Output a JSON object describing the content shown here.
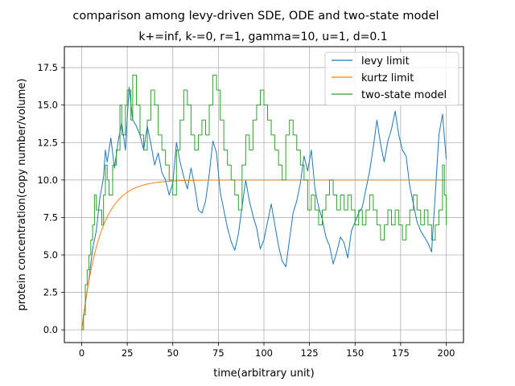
{
  "chart_data": {
    "type": "line",
    "suptitle": "comparison among levy-driven SDE, ODE and two-state model",
    "title": "k+=inf, k-=0, r=1, gamma=10, u=1, d=0.1",
    "xlabel": "time(arbitrary unit)",
    "ylabel": "protein concentration(copy number/volume)",
    "xlim": [
      -9.5,
      209.5
    ],
    "ylim": [
      -0.85,
      18.9
    ],
    "xticks": [
      0,
      25,
      50,
      75,
      100,
      125,
      150,
      175,
      200
    ],
    "yticks": [
      0.0,
      2.5,
      5.0,
      7.5,
      10.0,
      12.5,
      15.0,
      17.5
    ],
    "xtick_labels": [
      "0",
      "25",
      "50",
      "75",
      "100",
      "125",
      "150",
      "175",
      "200"
    ],
    "ytick_labels": [
      "0.0",
      "2.5",
      "5.0",
      "7.5",
      "10.0",
      "12.5",
      "15.0",
      "17.5"
    ],
    "grid": true,
    "legend_position": "upper right",
    "series": [
      {
        "name": "levy limit",
        "color": "#1f77b4",
        "style": "line",
        "points": [
          [
            0,
            0.0
          ],
          [
            2,
            1.8
          ],
          [
            4,
            3.4
          ],
          [
            6,
            5.4
          ],
          [
            8,
            6.6
          ],
          [
            10,
            8.8
          ],
          [
            12,
            10.2
          ],
          [
            13,
            12.0
          ],
          [
            14,
            11.2
          ],
          [
            16,
            12.8
          ],
          [
            18,
            10.8
          ],
          [
            20,
            12.6
          ],
          [
            22,
            13.8
          ],
          [
            24,
            12.0
          ],
          [
            26,
            16.2
          ],
          [
            28,
            14.0
          ],
          [
            30,
            13.6
          ],
          [
            32,
            13.0
          ],
          [
            34,
            12.0
          ],
          [
            36,
            13.6
          ],
          [
            38,
            12.4
          ],
          [
            40,
            11.0
          ],
          [
            42,
            11.8
          ],
          [
            44,
            10.5
          ],
          [
            46,
            10.0
          ],
          [
            48,
            9.0
          ],
          [
            50,
            9.8
          ],
          [
            52,
            12.5
          ],
          [
            54,
            11.2
          ],
          [
            56,
            10.2
          ],
          [
            58,
            9.4
          ],
          [
            60,
            10.8
          ],
          [
            62,
            9.6
          ],
          [
            64,
            8.0
          ],
          [
            66,
            7.8
          ],
          [
            68,
            8.6
          ],
          [
            70,
            10.4
          ],
          [
            72,
            12.6
          ],
          [
            74,
            11.8
          ],
          [
            76,
            9.2
          ],
          [
            78,
            8.0
          ],
          [
            80,
            6.8
          ],
          [
            82,
            5.9
          ],
          [
            84,
            5.3
          ],
          [
            86,
            6.4
          ],
          [
            88,
            8.2
          ],
          [
            90,
            10.0
          ],
          [
            92,
            8.6
          ],
          [
            94,
            7.6
          ],
          [
            96,
            6.8
          ],
          [
            98,
            5.4
          ],
          [
            100,
            6.0
          ],
          [
            102,
            7.2
          ],
          [
            104,
            8.4
          ],
          [
            106,
            7.0
          ],
          [
            108,
            5.6
          ],
          [
            110,
            4.6
          ],
          [
            112,
            4.2
          ],
          [
            114,
            6.0
          ],
          [
            116,
            7.8
          ],
          [
            118,
            8.6
          ],
          [
            120,
            9.8
          ],
          [
            122,
            11.6
          ],
          [
            124,
            10.6
          ],
          [
            126,
            12.0
          ],
          [
            128,
            9.4
          ],
          [
            130,
            8.2
          ],
          [
            132,
            7.4
          ],
          [
            134,
            6.2
          ],
          [
            136,
            5.6
          ],
          [
            138,
            4.4
          ],
          [
            140,
            5.2
          ],
          [
            142,
            6.2
          ],
          [
            144,
            5.8
          ],
          [
            146,
            4.8
          ],
          [
            148,
            6.6
          ],
          [
            150,
            7.2
          ],
          [
            152,
            7.8
          ],
          [
            154,
            8.2
          ],
          [
            156,
            9.4
          ],
          [
            158,
            10.6
          ],
          [
            160,
            12.2
          ],
          [
            162,
            14.0
          ],
          [
            164,
            12.4
          ],
          [
            166,
            11.2
          ],
          [
            168,
            12.6
          ],
          [
            170,
            13.4
          ],
          [
            172,
            14.6
          ],
          [
            174,
            13.0
          ],
          [
            176,
            12.0
          ],
          [
            178,
            11.6
          ],
          [
            180,
            9.6
          ],
          [
            182,
            8.4
          ],
          [
            184,
            7.2
          ],
          [
            186,
            6.6
          ],
          [
            188,
            6.2
          ],
          [
            190,
            5.8
          ],
          [
            192,
            5.2
          ],
          [
            194,
            9.0
          ],
          [
            196,
            13.0
          ],
          [
            198,
            14.4
          ],
          [
            200,
            11.4
          ]
        ]
      },
      {
        "name": "kurtz limit",
        "color": "#ff7f0e",
        "style": "smooth",
        "function": "10*(1-exp(-0.1*t))",
        "t_range": [
          0,
          200
        ]
      },
      {
        "name": "two-state model",
        "color": "#2ca02c",
        "style": "step",
        "points": [
          [
            0,
            0
          ],
          [
            1,
            1
          ],
          [
            2,
            3
          ],
          [
            3,
            4
          ],
          [
            4,
            5
          ],
          [
            5,
            6
          ],
          [
            6,
            7
          ],
          [
            7,
            9
          ],
          [
            8,
            8
          ],
          [
            10,
            8
          ],
          [
            11,
            7
          ],
          [
            12,
            9
          ],
          [
            13,
            11
          ],
          [
            14,
            10
          ],
          [
            15,
            9
          ],
          [
            17,
            11
          ],
          [
            19,
            12
          ],
          [
            21,
            15
          ],
          [
            22,
            13
          ],
          [
            24,
            15
          ],
          [
            25,
            16
          ],
          [
            27,
            14
          ],
          [
            28,
            17
          ],
          [
            30,
            15
          ],
          [
            32,
            13
          ],
          [
            34,
            12
          ],
          [
            36,
            14
          ],
          [
            38,
            16
          ],
          [
            40,
            15
          ],
          [
            42,
            13
          ],
          [
            44,
            12
          ],
          [
            46,
            11
          ],
          [
            48,
            10
          ],
          [
            50,
            9
          ],
          [
            52,
            12
          ],
          [
            54,
            14
          ],
          [
            56,
            16
          ],
          [
            58,
            15
          ],
          [
            60,
            13
          ],
          [
            62,
            12
          ],
          [
            64,
            13
          ],
          [
            66,
            14
          ],
          [
            68,
            13
          ],
          [
            70,
            15
          ],
          [
            72,
            17
          ],
          [
            74,
            16
          ],
          [
            76,
            14
          ],
          [
            78,
            12
          ],
          [
            80,
            11
          ],
          [
            82,
            10
          ],
          [
            84,
            9
          ],
          [
            86,
            8
          ],
          [
            88,
            11
          ],
          [
            90,
            13
          ],
          [
            92,
            12
          ],
          [
            94,
            14
          ],
          [
            96,
            15
          ],
          [
            98,
            16
          ],
          [
            100,
            15
          ],
          [
            102,
            14
          ],
          [
            104,
            13
          ],
          [
            106,
            12
          ],
          [
            108,
            11
          ],
          [
            110,
            10
          ],
          [
            112,
            13
          ],
          [
            114,
            14
          ],
          [
            116,
            13
          ],
          [
            118,
            12
          ],
          [
            120,
            11
          ],
          [
            122,
            10
          ],
          [
            124,
            8
          ],
          [
            126,
            9
          ],
          [
            128,
            8
          ],
          [
            130,
            7
          ],
          [
            132,
            8
          ],
          [
            134,
            9
          ],
          [
            136,
            10
          ],
          [
            138,
            9
          ],
          [
            140,
            8
          ],
          [
            142,
            9
          ],
          [
            144,
            8
          ],
          [
            146,
            9
          ],
          [
            148,
            8
          ],
          [
            150,
            7
          ],
          [
            152,
            8
          ],
          [
            154,
            7
          ],
          [
            156,
            8
          ],
          [
            158,
            9
          ],
          [
            160,
            8
          ],
          [
            162,
            7
          ],
          [
            164,
            6
          ],
          [
            166,
            7
          ],
          [
            168,
            8
          ],
          [
            170,
            7
          ],
          [
            172,
            8
          ],
          [
            174,
            7
          ],
          [
            176,
            6
          ],
          [
            178,
            7
          ],
          [
            180,
            8
          ],
          [
            182,
            9
          ],
          [
            184,
            8
          ],
          [
            186,
            7
          ],
          [
            188,
            8
          ],
          [
            190,
            7
          ],
          [
            192,
            6
          ],
          [
            194,
            7
          ],
          [
            196,
            8
          ],
          [
            198,
            11
          ],
          [
            199,
            9
          ],
          [
            200,
            7
          ]
        ]
      }
    ]
  }
}
